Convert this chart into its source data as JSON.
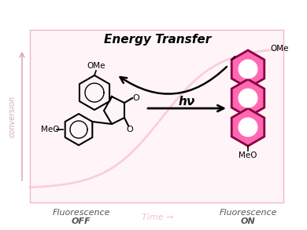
{
  "box_bg": "#fff5f8",
  "box_border": "#f0b8c8",
  "energy_transfer_text": "Energy Transfer",
  "hv_text": "hν",
  "fluorescence_off_text": "Fluorescence\nOFF",
  "fluorescence_on_text": "Fluorescence\nON",
  "time_text": "Time →",
  "ylabel_bg": "conversion",
  "anthracene_fill": "#ff69b4",
  "anthracene_fill_center": "#ffffff",
  "anthracene_border": "#8b0040",
  "bg_curve_color": "#f5c0d0",
  "label_color": "#555555",
  "time_color": "#f0b0c0"
}
